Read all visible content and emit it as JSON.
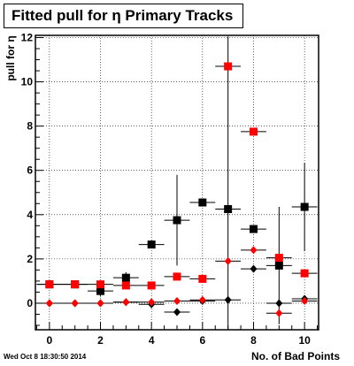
{
  "chart_data": {
    "type": "scatter",
    "title": "Fitted pull for η Primary Tracks",
    "xlabel": "No. of Bad Points",
    "ylabel": "pull for η",
    "xlim": [
      -0.55,
      10.55
    ],
    "ylim": [
      -1.2,
      12.1
    ],
    "x_ticks": [
      0,
      2,
      4,
      6,
      8,
      10
    ],
    "y_ticks": [
      0,
      2,
      4,
      6,
      8,
      10,
      12
    ],
    "grid": true,
    "series": [
      {
        "marker": "square",
        "color": "#000000",
        "x": [
          0,
          1,
          2,
          3,
          4,
          5,
          6,
          7,
          8,
          9,
          10
        ],
        "y": [
          0.85,
          0.85,
          0.55,
          1.15,
          2.65,
          3.75,
          4.55,
          4.25,
          3.35,
          1.7,
          4.35
        ],
        "err": [
          0.0,
          0.05,
          0.25,
          0.25,
          0.0,
          2.05,
          0.0,
          7.8,
          0.0,
          2.65,
          2.0
        ]
      },
      {
        "marker": "square",
        "color": "#ff0000",
        "x": [
          0,
          1,
          2,
          3,
          4,
          5,
          6,
          7,
          8,
          9,
          10
        ],
        "y": [
          0.85,
          0.85,
          0.85,
          0.8,
          0.8,
          1.2,
          1.1,
          10.7,
          7.75,
          2.05,
          1.35
        ],
        "err": [
          0.0,
          0.0,
          0.0,
          0.0,
          0.0,
          0.0,
          0.0,
          0.0,
          0.0,
          0.0,
          0.0
        ]
      },
      {
        "marker": "diamond",
        "color": "#000000",
        "x": [
          0,
          1,
          2,
          3,
          4,
          5,
          6,
          7,
          8,
          9,
          10
        ],
        "y": [
          0.0,
          0.0,
          0.0,
          0.05,
          -0.05,
          -0.4,
          0.1,
          0.15,
          1.55,
          0.0,
          0.2
        ],
        "err": [
          0.0,
          0.0,
          0.0,
          0.0,
          0.0,
          0.0,
          0.0,
          0.0,
          0.0,
          0.0,
          0.0
        ]
      },
      {
        "marker": "diamond",
        "color": "#ff0000",
        "x": [
          0,
          1,
          2,
          3,
          4,
          5,
          6,
          7,
          8,
          9,
          10
        ],
        "y": [
          0.0,
          0.0,
          0.0,
          0.05,
          0.05,
          0.1,
          0.15,
          1.9,
          2.4,
          -0.45,
          0.1
        ],
        "err": [
          0.0,
          0.0,
          0.0,
          0.0,
          0.0,
          0.0,
          0.0,
          0.0,
          0.0,
          0.0,
          0.0
        ]
      }
    ]
  },
  "footer": {
    "timestamp": "Wed Oct  8 18:30:50 2014"
  }
}
